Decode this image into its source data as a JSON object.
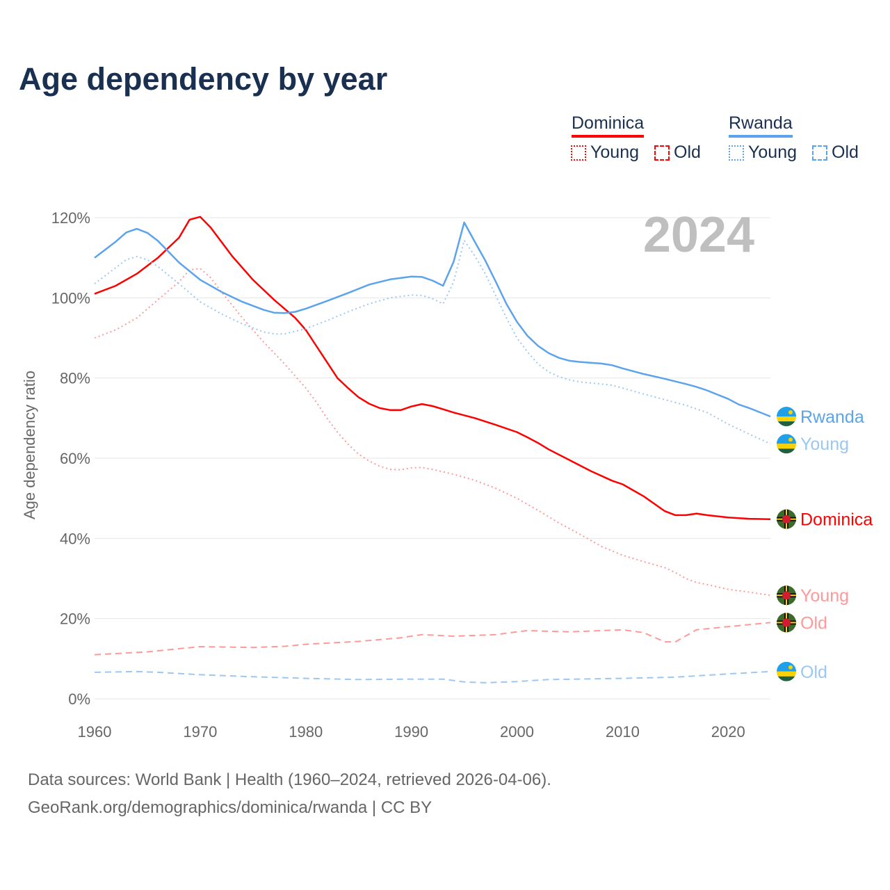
{
  "title": "Age dependency by year",
  "legend": {
    "groups": [
      {
        "name": "Dominica",
        "color": "#ff0000",
        "young": "Young",
        "old": "Old"
      },
      {
        "name": "Rwanda",
        "color": "#5ba3ec",
        "young": "Young",
        "old": "Old"
      }
    ]
  },
  "footer": {
    "line1": "Data sources: World Bank | Health (1960–2024, retrieved 2026-04-06).",
    "line2": "GeoRank.org/demographics/dominica/rwanda | CC BY"
  },
  "chart_data": {
    "type": "line",
    "title": "Age dependency by year",
    "year_label": "2024",
    "xlabel": "",
    "ylabel": "Age dependency ratio",
    "xlim": [
      1960,
      2024
    ],
    "ylim": [
      0,
      120
    ],
    "xticks": [
      "1960",
      "1970",
      "1980",
      "1990",
      "2000",
      "2010",
      "2020"
    ],
    "yticks": [
      "0%",
      "20%",
      "40%",
      "60%",
      "80%",
      "100%",
      "120%"
    ],
    "grid": true,
    "series": [
      {
        "name": "Dominica",
        "end_label": "Dominica",
        "country": "dominica",
        "color": "#ff0000",
        "style": "solid",
        "light": false,
        "x": [
          1960,
          1962,
          1964,
          1966,
          1968,
          1969,
          1970,
          1971,
          1972,
          1973,
          1975,
          1977,
          1979,
          1980,
          1981,
          1982,
          1983,
          1984,
          1985,
          1986,
          1987,
          1988,
          1989,
          1990,
          1991,
          1992,
          1993,
          1994,
          1996,
          1998,
          2000,
          2001,
          2002,
          2003,
          2005,
          2007,
          2009,
          2010,
          2012,
          2014,
          2015,
          2016,
          2017,
          2018,
          2020,
          2022,
          2024
        ],
        "y": [
          101,
          103,
          106,
          110,
          115,
          119.5,
          120.2,
          117.5,
          114,
          110.5,
          104.5,
          99.5,
          95,
          92,
          88,
          84,
          80,
          77.5,
          75.2,
          73.6,
          72.5,
          72,
          72,
          72.9,
          73.5,
          73,
          72.2,
          71.4,
          70,
          68.3,
          66.5,
          65.2,
          63.8,
          62.2,
          59.5,
          56.8,
          54.4,
          53.5,
          50.5,
          46.8,
          45.8,
          45.8,
          46.2,
          45.8,
          45.2,
          44.9,
          44.8
        ]
      },
      {
        "name": "Dominica Young",
        "end_label": "Young",
        "country": "dominica",
        "color": "#ff9999",
        "style": "dotted",
        "light": true,
        "x": [
          1960,
          1962,
          1964,
          1966,
          1968,
          1969,
          1970,
          1971,
          1972,
          1974,
          1976,
          1978,
          1980,
          1981,
          1982,
          1983,
          1984,
          1985,
          1986,
          1987,
          1988,
          1989,
          1990,
          1991,
          1992,
          1994,
          1996,
          1998,
          2000,
          2002,
          2004,
          2006,
          2008,
          2010,
          2012,
          2014,
          2015,
          2016,
          2017,
          2018,
          2020,
          2022,
          2024
        ],
        "y": [
          90,
          92,
          95,
          99.5,
          104,
          107,
          107.3,
          105,
          101.5,
          95,
          89,
          83.5,
          77.5,
          74,
          70,
          66.5,
          63.5,
          61,
          59.3,
          58,
          57.2,
          57.1,
          57.6,
          57.7,
          57.2,
          56,
          54.5,
          52.5,
          50,
          47,
          43.8,
          41,
          38,
          35.8,
          34.2,
          32.7,
          31.5,
          30,
          29,
          28.5,
          27.3,
          26.6,
          25.8
        ]
      },
      {
        "name": "Dominica Old",
        "end_label": "Old",
        "country": "dominica",
        "color": "#ff9999",
        "style": "dashed",
        "light": true,
        "x": [
          1960,
          1965,
          1970,
          1975,
          1978,
          1980,
          1985,
          1989,
          1991,
          1994,
          1998,
          2000,
          2001,
          2005,
          2010,
          2012,
          2014,
          2015,
          2017,
          2020,
          2024
        ],
        "y": [
          11,
          11.7,
          13,
          12.8,
          13.1,
          13.6,
          14.3,
          15.2,
          16,
          15.6,
          16,
          16.7,
          17,
          16.7,
          17.2,
          16.5,
          14.2,
          14.2,
          17.2,
          18,
          19
        ]
      },
      {
        "name": "Rwanda",
        "end_label": "Rwanda",
        "country": "rwanda",
        "color": "#5ba3ec",
        "style": "solid",
        "light": false,
        "x": [
          1960,
          1962,
          1963,
          1964,
          1965,
          1966,
          1967,
          1968,
          1970,
          1972,
          1974,
          1976,
          1977,
          1978,
          1979,
          1980,
          1982,
          1984,
          1986,
          1988,
          1990,
          1991,
          1992,
          1993,
          1994,
          1995,
          1996,
          1997,
          1998,
          1999,
          2000,
          2001,
          2002,
          2003,
          2004,
          2005,
          2006,
          2008,
          2009,
          2010,
          2012,
          2014,
          2016,
          2017,
          2018,
          2020,
          2021,
          2022,
          2024
        ],
        "y": [
          110,
          114,
          116.3,
          117.2,
          116.2,
          114.2,
          111.5,
          108.8,
          104.5,
          101.5,
          99,
          97,
          96.3,
          96.2,
          96.5,
          97.3,
          99.2,
          101.2,
          103.3,
          104.6,
          105.3,
          105.2,
          104.3,
          103,
          109,
          118.8,
          114,
          109.3,
          104,
          98.5,
          94,
          90.5,
          88,
          86.2,
          85,
          84.3,
          84,
          83.6,
          83.2,
          82.4,
          81,
          79.8,
          78.5,
          77.8,
          76.9,
          74.8,
          73.4,
          72.5,
          70.4
        ]
      },
      {
        "name": "Rwanda Young",
        "end_label": "Young",
        "country": "rwanda",
        "color": "#9cc7f2",
        "style": "dotted",
        "light": true,
        "x": [
          1960,
          1962,
          1963,
          1964,
          1965,
          1966,
          1968,
          1970,
          1972,
          1974,
          1976,
          1977,
          1978,
          1980,
          1982,
          1984,
          1986,
          1988,
          1990,
          1991,
          1992,
          1993,
          1994,
          1995,
          1996,
          1997,
          1998,
          1999,
          2000,
          2001,
          2002,
          2003,
          2004,
          2005,
          2006,
          2008,
          2009,
          2010,
          2012,
          2014,
          2016,
          2018,
          2020,
          2022,
          2024
        ],
        "y": [
          103.5,
          107.5,
          109.5,
          110.3,
          109.5,
          107.8,
          103.5,
          99,
          96,
          93.5,
          91.5,
          91,
          91,
          92.3,
          94.3,
          96.5,
          98.5,
          100,
          100.7,
          100.6,
          99.8,
          98.5,
          104,
          114.3,
          110.5,
          106,
          100.5,
          95,
          90,
          86.5,
          83.5,
          81.5,
          80.3,
          79.5,
          79,
          78.5,
          78.2,
          77.5,
          76,
          74.6,
          73.2,
          71.4,
          68.5,
          66,
          63.6
        ]
      },
      {
        "name": "Rwanda Old",
        "end_label": "Old",
        "country": "rwanda",
        "color": "#9cc7f2",
        "style": "dashed",
        "light": true,
        "x": [
          1960,
          1964,
          1966,
          1970,
          1975,
          1980,
          1985,
          1990,
          1993,
          1995,
          1997,
          2000,
          2003,
          2010,
          2015,
          2020,
          2024
        ],
        "y": [
          6.6,
          6.8,
          6.6,
          6,
          5.5,
          5.1,
          4.8,
          4.9,
          4.9,
          4.2,
          4,
          4.3,
          4.8,
          5.1,
          5.4,
          6.2,
          6.8
        ]
      }
    ]
  }
}
